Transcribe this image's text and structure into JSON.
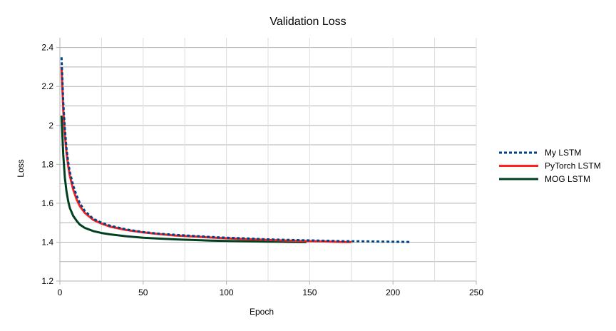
{
  "chart_data": {
    "type": "line",
    "title": "Validation Loss",
    "xlabel": "Epoch",
    "ylabel": "Loss",
    "xlim": [
      0,
      250
    ],
    "ylim": [
      1.2,
      2.45
    ],
    "x_ticks": [
      0,
      50,
      100,
      150,
      200,
      250
    ],
    "y_ticks": [
      1.2,
      1.4,
      1.6,
      1.8,
      2,
      2.2,
      2.4
    ],
    "x_tick_labels": [
      "0",
      "50",
      "100",
      "150",
      "200",
      "250"
    ],
    "y_tick_labels": [
      "1.2",
      "1.4",
      "1.6",
      "1.8",
      "2",
      "2.2",
      "2.4"
    ],
    "grid": true,
    "legend_position": "right",
    "series": [
      {
        "name": "My LSTM",
        "color": "#004586",
        "dash": "dotted",
        "x": [
          1,
          2,
          3,
          4,
          5,
          6,
          8,
          10,
          12,
          15,
          20,
          25,
          30,
          40,
          50,
          60,
          70,
          80,
          90,
          100,
          110,
          120,
          130,
          140,
          150,
          160,
          170,
          180,
          190,
          200,
          210
        ],
        "y": [
          2.35,
          2.12,
          1.98,
          1.88,
          1.81,
          1.76,
          1.69,
          1.64,
          1.6,
          1.56,
          1.52,
          1.5,
          1.485,
          1.465,
          1.452,
          1.443,
          1.437,
          1.432,
          1.427,
          1.423,
          1.42,
          1.416,
          1.413,
          1.411,
          1.409,
          1.407,
          1.405,
          1.404,
          1.403,
          1.402,
          1.401
        ]
      },
      {
        "name": "PyTorch LSTM",
        "color": "#ff2020",
        "dash": "solid",
        "x": [
          1,
          2,
          3,
          4,
          5,
          6,
          8,
          10,
          12,
          15,
          20,
          25,
          30,
          40,
          50,
          60,
          70,
          80,
          90,
          100,
          110,
          120,
          130,
          140,
          150,
          160,
          170,
          175
        ],
        "y": [
          2.3,
          2.08,
          1.95,
          1.86,
          1.79,
          1.74,
          1.67,
          1.62,
          1.585,
          1.55,
          1.515,
          1.495,
          1.48,
          1.462,
          1.45,
          1.441,
          1.434,
          1.429,
          1.424,
          1.42,
          1.416,
          1.413,
          1.41,
          1.407,
          1.405,
          1.403,
          1.401,
          1.4
        ]
      },
      {
        "name": "MOG LSTM",
        "color": "#004020",
        "dash": "solid",
        "x": [
          1,
          2,
          3,
          4,
          5,
          6,
          8,
          10,
          12,
          15,
          20,
          25,
          30,
          40,
          50,
          60,
          70,
          80,
          90,
          100,
          110,
          120,
          130,
          140,
          148
        ],
        "y": [
          2.05,
          1.85,
          1.73,
          1.66,
          1.61,
          1.575,
          1.535,
          1.51,
          1.49,
          1.473,
          1.457,
          1.447,
          1.44,
          1.43,
          1.423,
          1.418,
          1.414,
          1.411,
          1.408,
          1.406,
          1.404,
          1.403,
          1.402,
          1.401,
          1.4
        ]
      }
    ]
  }
}
